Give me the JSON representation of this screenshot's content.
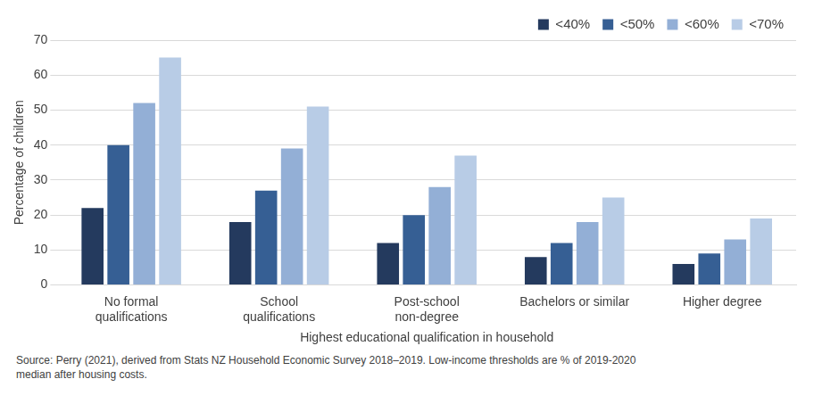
{
  "chart_data": {
    "type": "bar",
    "categories": [
      "No formal qualifications",
      "School qualifications",
      "Post-school non-degree",
      "Bachelors or similar",
      "Higher degree"
    ],
    "series": [
      {
        "name": "<40%",
        "color": "#243a5e",
        "values": [
          22,
          18,
          12,
          8,
          6
        ]
      },
      {
        "name": "<50%",
        "color": "#365f94",
        "values": [
          40,
          27,
          20,
          12,
          9
        ]
      },
      {
        "name": "<60%",
        "color": "#93afd6",
        "values": [
          52,
          39,
          28,
          18,
          13
        ]
      },
      {
        "name": "<70%",
        "color": "#b8cce6",
        "values": [
          65,
          51,
          37,
          25,
          19
        ]
      }
    ],
    "x_label": "Highest educational qualification in household",
    "y_label": "Percentage of children",
    "ylim": [
      0,
      70
    ],
    "yticks": [
      0,
      10,
      20,
      30,
      40,
      50,
      60,
      70
    ],
    "grid": true,
    "legend": "top-right",
    "source": "Source: Perry (2021), derived from Stats NZ Household Economic Survey 2018–2019. Low-income thresholds are % of 2019-2020 median after housing costs."
  }
}
